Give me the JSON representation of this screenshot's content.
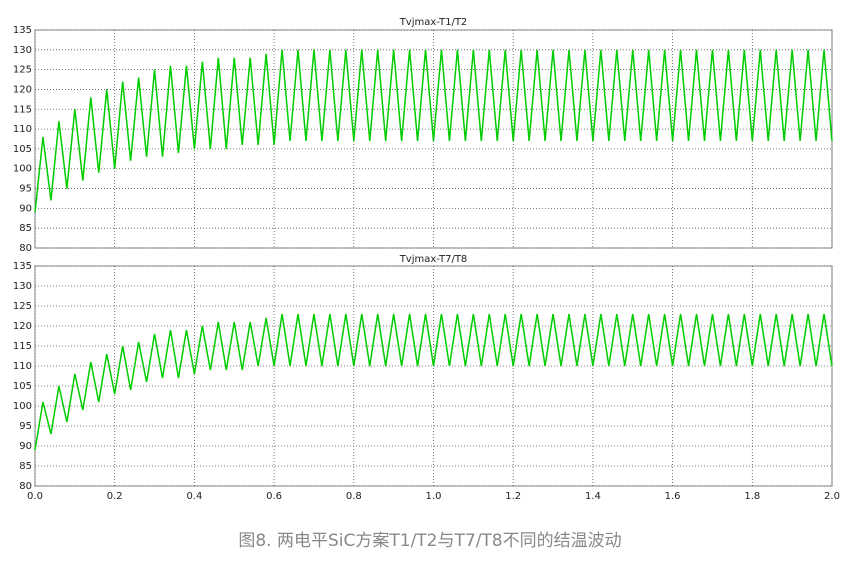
{
  "chart_data": [
    {
      "type": "line",
      "title": "Tvjmax-T1/T2",
      "color": "#00cc00",
      "grid": true,
      "show_xtick_labels": false,
      "xlim": [
        0,
        2
      ],
      "ylim": [
        80,
        135
      ],
      "xticks": [
        {
          "value": 0,
          "label": "0.0"
        },
        0.2,
        0.4,
        0.6,
        0.8,
        {
          "value": 1,
          "label": "1.0"
        },
        1.2,
        1.4,
        1.6,
        1.8,
        {
          "value": 2,
          "label": "2.0"
        }
      ],
      "yticks": [
        80,
        85,
        90,
        95,
        100,
        105,
        110,
        115,
        120,
        125,
        130,
        135
      ],
      "x": [
        0,
        0.02,
        0.04,
        0.06,
        0.08,
        0.1,
        0.12,
        0.14,
        0.16,
        0.18,
        0.2,
        0.22,
        0.24,
        0.26,
        0.28,
        0.3,
        0.32,
        0.34,
        0.36,
        0.38,
        0.4,
        0.42,
        0.44,
        0.46,
        0.48,
        0.5,
        0.52,
        0.54,
        0.56,
        0.58,
        0.6,
        0.62,
        0.64,
        0.66,
        0.68,
        0.7,
        0.72,
        0.74,
        0.76,
        0.78,
        0.8,
        0.82,
        0.84,
        0.86,
        0.88,
        0.9,
        0.92,
        0.94,
        0.96,
        0.98,
        1,
        1.02,
        1.04,
        1.06,
        1.08,
        1.1,
        1.12,
        1.14,
        1.16,
        1.18,
        1.2,
        1.22,
        1.24,
        1.26,
        1.28,
        1.3,
        1.32,
        1.34,
        1.36,
        1.38,
        1.4,
        1.42,
        1.44,
        1.46,
        1.48,
        1.5,
        1.52,
        1.54,
        1.56,
        1.58,
        1.6,
        1.62,
        1.64,
        1.66,
        1.68,
        1.7,
        1.72,
        1.74,
        1.76,
        1.78,
        1.8,
        1.82,
        1.84,
        1.86,
        1.88,
        1.9,
        1.92,
        1.94,
        1.96,
        1.98,
        2
      ],
      "values": [
        89,
        108,
        92,
        112,
        95,
        115,
        97,
        118,
        99,
        120,
        100,
        122,
        102,
        123,
        103,
        125,
        103,
        126,
        104,
        126,
        105,
        127,
        105,
        128,
        105,
        128,
        106,
        128,
        106,
        129,
        106,
        130,
        107,
        130,
        107,
        130,
        107,
        130,
        107,
        130,
        107,
        130,
        107,
        130,
        107,
        130,
        107,
        130,
        107,
        130,
        107,
        130,
        107,
        130,
        107,
        130,
        107,
        130,
        107,
        130,
        107,
        130,
        107,
        130,
        107,
        130,
        107,
        130,
        107,
        130,
        107,
        130,
        107,
        130,
        107,
        130,
        107,
        130,
        107,
        130,
        107,
        130,
        107,
        130,
        107,
        130,
        107,
        130,
        107,
        130,
        107,
        130,
        107,
        130,
        107,
        130,
        107,
        130,
        107,
        130,
        107
      ]
    },
    {
      "type": "line",
      "title": "Tvjmax-T7/T8",
      "color": "#00cc00",
      "grid": true,
      "show_xtick_labels": true,
      "xlim": [
        0,
        2
      ],
      "ylim": [
        80,
        135
      ],
      "xticks": [
        {
          "value": 0,
          "label": "0.0"
        },
        0.2,
        0.4,
        0.6,
        0.8,
        {
          "value": 1,
          "label": "1.0"
        },
        1.2,
        1.4,
        1.6,
        1.8,
        {
          "value": 2,
          "label": "2.0"
        }
      ],
      "yticks": [
        80,
        85,
        90,
        95,
        100,
        105,
        110,
        115,
        120,
        125,
        130,
        135
      ],
      "x": [
        0,
        0.02,
        0.04,
        0.06,
        0.08,
        0.1,
        0.12,
        0.14,
        0.16,
        0.18,
        0.2,
        0.22,
        0.24,
        0.26,
        0.28,
        0.3,
        0.32,
        0.34,
        0.36,
        0.38,
        0.4,
        0.42,
        0.44,
        0.46,
        0.48,
        0.5,
        0.52,
        0.54,
        0.56,
        0.58,
        0.6,
        0.62,
        0.64,
        0.66,
        0.68,
        0.7,
        0.72,
        0.74,
        0.76,
        0.78,
        0.8,
        0.82,
        0.84,
        0.86,
        0.88,
        0.9,
        0.92,
        0.94,
        0.96,
        0.98,
        1,
        1.02,
        1.04,
        1.06,
        1.08,
        1.1,
        1.12,
        1.14,
        1.16,
        1.18,
        1.2,
        1.22,
        1.24,
        1.26,
        1.28,
        1.3,
        1.32,
        1.34,
        1.36,
        1.38,
        1.4,
        1.42,
        1.44,
        1.46,
        1.48,
        1.5,
        1.52,
        1.54,
        1.56,
        1.58,
        1.6,
        1.62,
        1.64,
        1.66,
        1.68,
        1.7,
        1.72,
        1.74,
        1.76,
        1.78,
        1.8,
        1.82,
        1.84,
        1.86,
        1.88,
        1.9,
        1.92,
        1.94,
        1.96,
        1.98,
        2
      ],
      "values": [
        89,
        101,
        93,
        105,
        96,
        108,
        99,
        111,
        101,
        113,
        103,
        115,
        104,
        116,
        106,
        118,
        107,
        119,
        107,
        119,
        108,
        120,
        109,
        121,
        109,
        121,
        109,
        121,
        110,
        122,
        110,
        123,
        110,
        123,
        110,
        123,
        110,
        123,
        110,
        123,
        110,
        123,
        110,
        123,
        110,
        123,
        110,
        123,
        110,
        123,
        110,
        123,
        110,
        123,
        110,
        123,
        110,
        123,
        110,
        123,
        110,
        123,
        110,
        123,
        110,
        123,
        110,
        123,
        110,
        123,
        110,
        123,
        110,
        123,
        110,
        123,
        110,
        123,
        110,
        123,
        110,
        123,
        110,
        123,
        110,
        123,
        110,
        123,
        110,
        123,
        110,
        123,
        110,
        123,
        110,
        123,
        110,
        123,
        110,
        123,
        110
      ]
    }
  ],
  "caption": "图8. 两电平SiC方案T1/T2与T7/T8不同的结温波动"
}
